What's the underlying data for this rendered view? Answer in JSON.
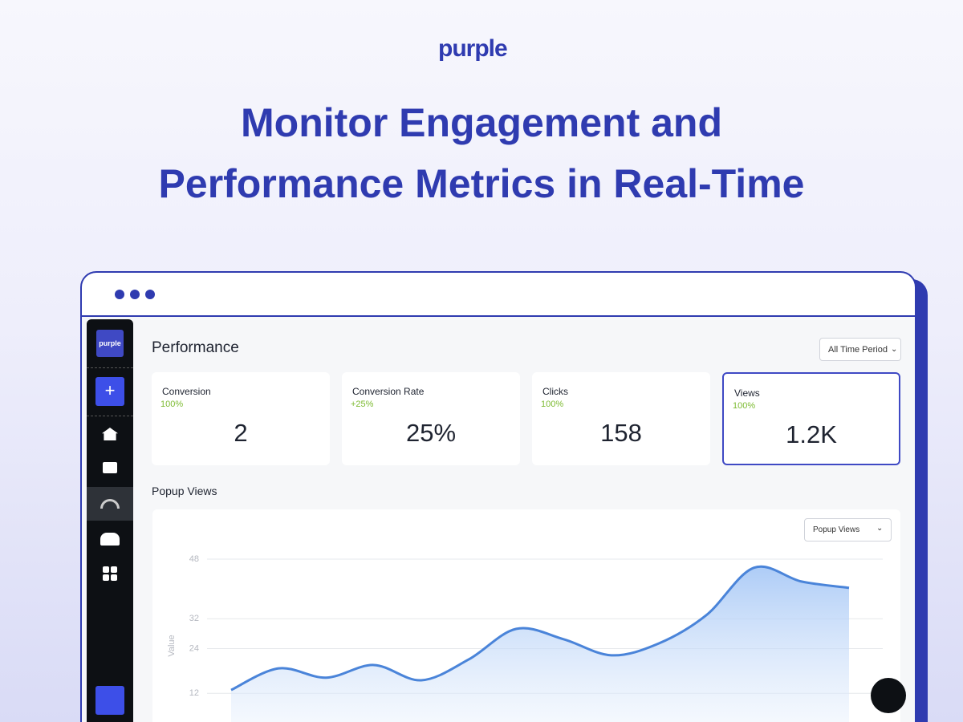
{
  "brand": "purple",
  "headline": {
    "line1": "Monitor Engagement and",
    "line2": "Performance Metrics in Real-Time"
  },
  "sidebar": {
    "logo": "purple"
  },
  "dashboard": {
    "title": "Performance",
    "period_select": "All Time Period",
    "cards": [
      {
        "label": "Conversion",
        "change": "100%",
        "value": "2"
      },
      {
        "label": "Conversion Rate",
        "change": "+25%",
        "value": "25%"
      },
      {
        "label": "Clicks",
        "change": "100%",
        "value": "158"
      },
      {
        "label": "Views",
        "change": "100%",
        "value": "1.2K"
      }
    ],
    "section_title": "Popup Views",
    "chart_select": "Popup Views"
  },
  "chart_data": {
    "type": "area",
    "y_label": "Value",
    "categories": [
      null,
      null,
      null,
      null,
      null,
      null,
      null,
      null,
      null,
      null,
      null,
      null,
      null,
      null
    ],
    "values": [
      12.9,
      18.7,
      16.2,
      19.6,
      15.5,
      21.1,
      29.3,
      26.5,
      22.2,
      25.4,
      33,
      45.7,
      42,
      40.3
    ],
    "color": "#4a84d9",
    "ylim": [
      0,
      48
    ],
    "yticks": [
      12,
      24,
      32,
      48
    ],
    "grid": true
  }
}
